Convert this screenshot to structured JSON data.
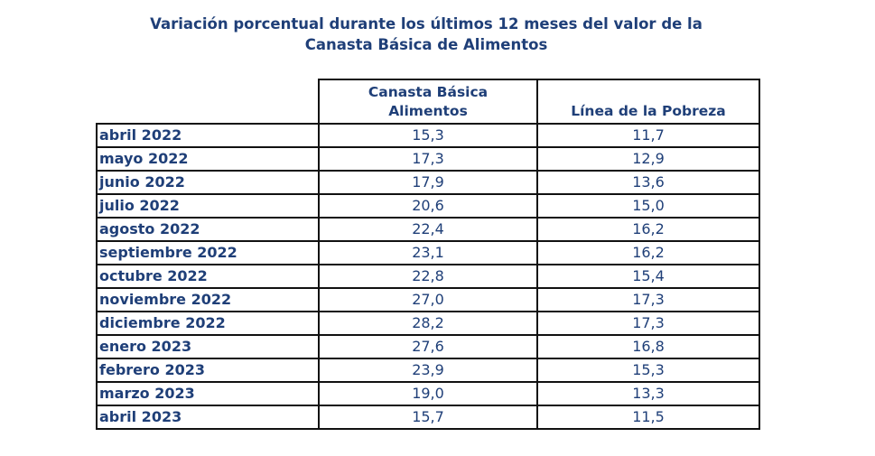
{
  "chart_data": {
    "type": "table",
    "title_line1": "Variación porcentual durante los últimos 12 meses del valor de la",
    "title_line2": "Canasta Básica de Alimentos",
    "columns": [
      "Canasta Básica Alimentos",
      "Línea de la Pobreza"
    ],
    "column_header_lines": [
      [
        "Canasta Básica",
        "Alimentos"
      ],
      [
        "Línea de la Pobreza"
      ]
    ],
    "rows": [
      {
        "label": "abril 2022",
        "values": [
          "15,3",
          "11,7"
        ]
      },
      {
        "label": "mayo 2022",
        "values": [
          "17,3",
          "12,9"
        ]
      },
      {
        "label": "junio 2022",
        "values": [
          "17,9",
          "13,6"
        ]
      },
      {
        "label": "julio 2022",
        "values": [
          "20,6",
          "15,0"
        ]
      },
      {
        "label": "agosto 2022",
        "values": [
          "22,4",
          "16,2"
        ]
      },
      {
        "label": "septiembre 2022",
        "values": [
          "23,1",
          "16,2"
        ]
      },
      {
        "label": "octubre 2022",
        "values": [
          "22,8",
          "15,4"
        ]
      },
      {
        "label": "noviembre 2022",
        "values": [
          "27,0",
          "17,3"
        ]
      },
      {
        "label": "diciembre 2022",
        "values": [
          "28,2",
          "17,3"
        ]
      },
      {
        "label": "enero 2023",
        "values": [
          "27,6",
          "16,8"
        ]
      },
      {
        "label": "febrero 2023",
        "values": [
          "23,9",
          "15,3"
        ]
      },
      {
        "label": "marzo 2023",
        "values": [
          "19,0",
          "13,3"
        ]
      },
      {
        "label": "abril 2023",
        "values": [
          "15,7",
          "11,5"
        ]
      }
    ],
    "text_color": "#1f3f78"
  }
}
